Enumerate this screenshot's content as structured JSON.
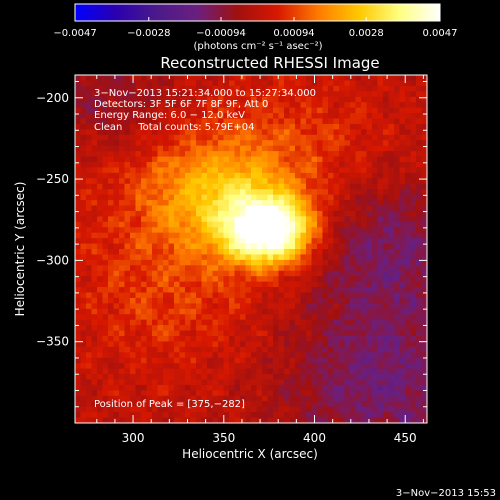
{
  "chart_data": {
    "type": "heatmap",
    "title": "Reconstructed RHESSI Image",
    "xlabel": "Heliocentric X (arcsec)",
    "ylabel": "Heliocentric Y (arcsec)",
    "x_range": [
      268,
      462
    ],
    "y_range": [
      -400,
      -186
    ],
    "x_ticks": [
      300,
      350,
      400,
      450
    ],
    "y_ticks": [
      -200,
      -250,
      -300,
      -350
    ],
    "x_tick_labels": [
      "300",
      "350",
      "400",
      "450"
    ],
    "y_tick_labels": [
      "−200",
      "−250",
      "−300",
      "−350"
    ],
    "colorbar": {
      "min": -0.0047,
      "max": 0.0047,
      "ticks": [
        -0.0047,
        -0.0028,
        -0.00094,
        0.00094,
        0.0028,
        0.0047
      ],
      "tick_labels": [
        "−0.0047",
        "−0.0028",
        "−0.00094",
        "0.00094",
        "0.0028",
        "0.0047"
      ],
      "unit_label": "(photons cm⁻² s⁻¹ asec⁻²)",
      "colormap": [
        "#0000ff",
        "#2a00b0",
        "#4a1a8a",
        "#6a1f80",
        "#a01010",
        "#d81800",
        "#ff7a00",
        "#ffc800",
        "#ffff80",
        "#ffffff"
      ]
    },
    "annotations": [
      "3−Nov−2013 15:21:34.000 to 15:27:34.000",
      "Detectors: 3F 5F 6F 7F 8F 9F, Att 0",
      "Energy Range: 6.0 − 12.0 keV",
      "Clean     Total counts: 5.79E+04"
    ],
    "peak_text": "Position of Peak = [375,−282]",
    "peak": {
      "x": 375,
      "y": -282,
      "value": 0.0047
    },
    "sources": [
      {
        "x": 375,
        "y": -282,
        "sx": 16,
        "sy": 14,
        "amp": 0.005
      },
      {
        "x": 352,
        "y": -263,
        "sx": 28,
        "sy": 22,
        "amp": 0.0018
      },
      {
        "x": 330,
        "y": -240,
        "sx": 40,
        "sy": 35,
        "amp": 0.0009
      },
      {
        "x": 320,
        "y": -320,
        "sx": 40,
        "sy": 35,
        "amp": 0.0008
      },
      {
        "x": 400,
        "y": -230,
        "sx": 35,
        "sy": 30,
        "amp": 0.0006
      },
      {
        "x": 295,
        "y": -205,
        "sx": 30,
        "sy": 25,
        "amp": -0.001
      },
      {
        "x": 440,
        "y": -290,
        "sx": 30,
        "sy": 30,
        "amp": -0.0012
      },
      {
        "x": 440,
        "y": -375,
        "sx": 40,
        "sy": 40,
        "amp": -0.0014
      }
    ]
  },
  "footer_timestamp": "3−Nov−2013 15:53"
}
